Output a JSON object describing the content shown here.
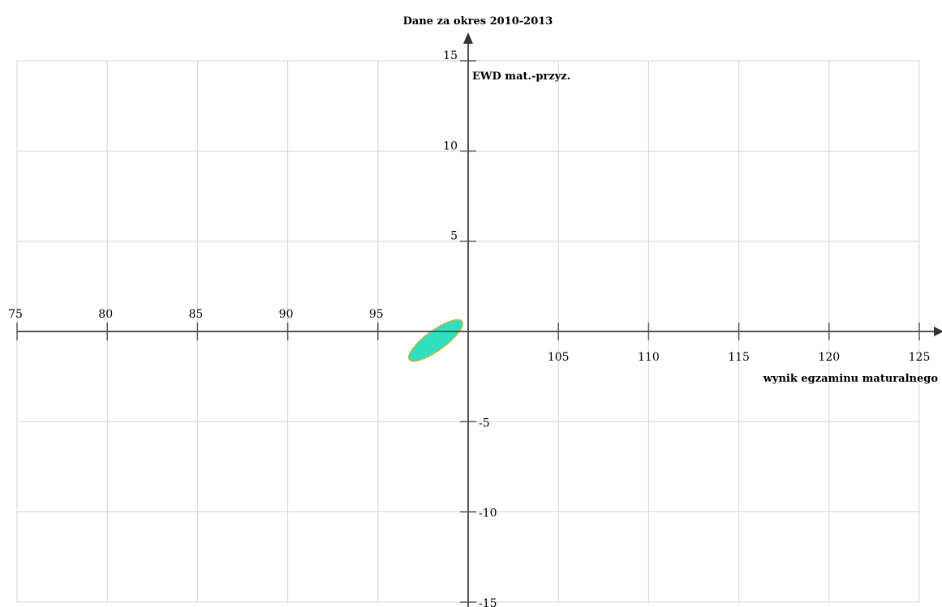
{
  "chart_data": {
    "type": "scatter",
    "title": "Dane za okres 2010-2013",
    "xlabel": "wynik egzaminu maturalnego",
    "ylabel": "EWD mat.-przyz.",
    "xlim": [
      75,
      125
    ],
    "ylim": [
      -15,
      15
    ],
    "x_ticks": [
      75,
      80,
      85,
      90,
      95,
      105,
      110,
      115,
      120,
      125
    ],
    "y_ticks": [
      15,
      10,
      5,
      -5,
      -10,
      -15
    ],
    "grid": true,
    "regions": [
      {
        "shape": "ellipse",
        "center": [
          98.2,
          -0.5
        ],
        "semi_axes": [
          1.8,
          0.55
        ],
        "slope_direction": "rising",
        "fill_color": "#2ee0bf",
        "edge_color": "#c9b24a"
      }
    ],
    "colors": {
      "grid": "#d4d4d4",
      "axis": "#555555",
      "region_fill": "#2ee0bf",
      "region_edge": "#c9b24a"
    }
  }
}
